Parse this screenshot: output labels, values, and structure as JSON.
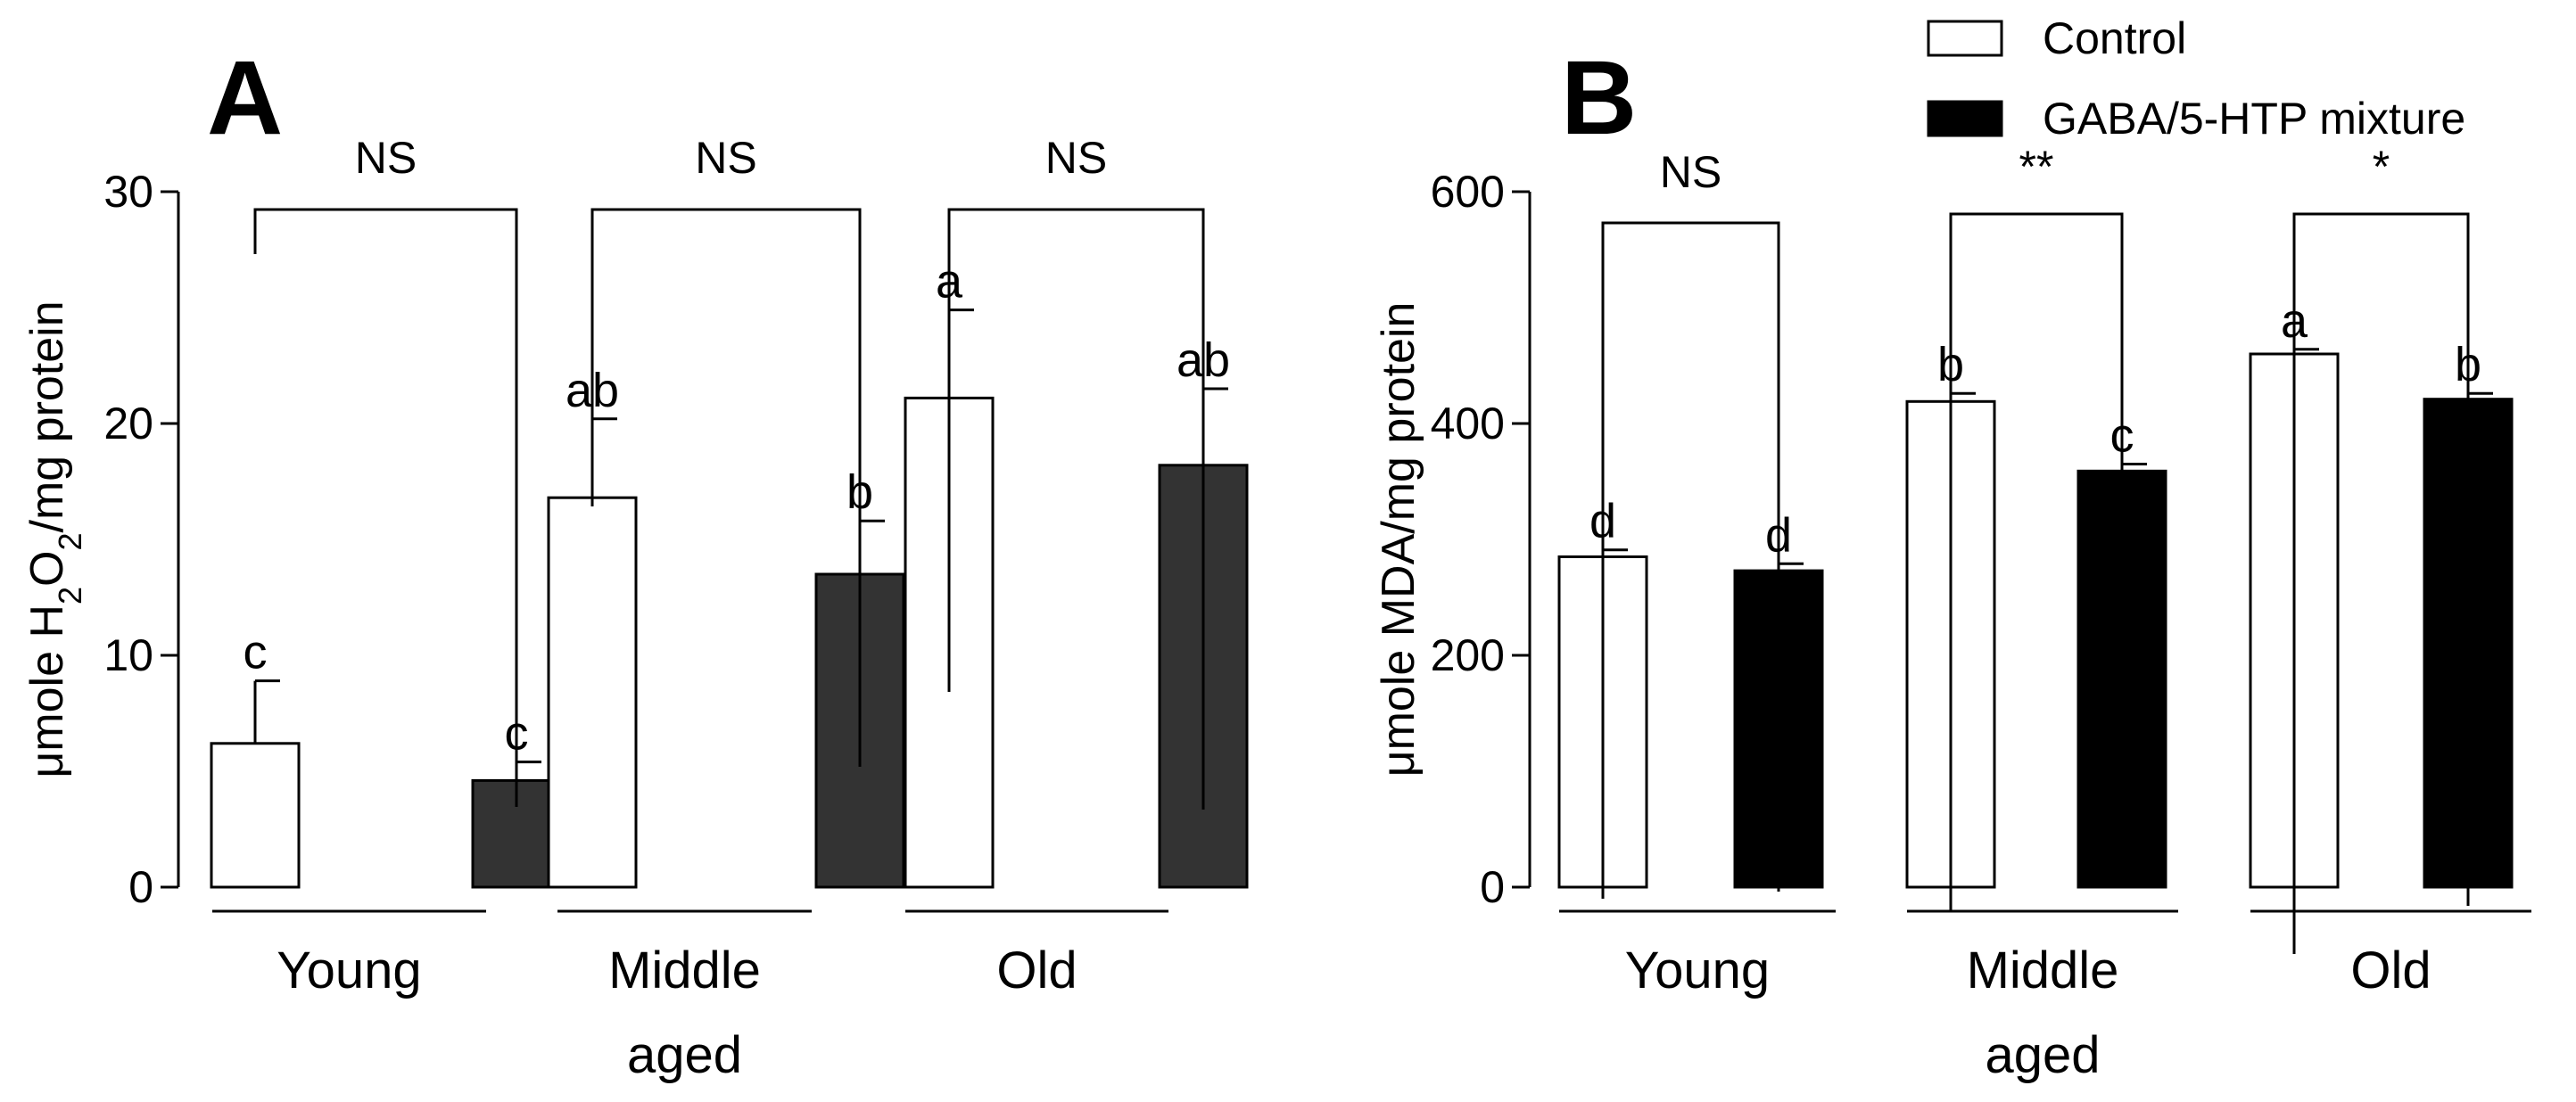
{
  "legend": {
    "items": [
      {
        "label": "Control",
        "fill": "#ffffff"
      },
      {
        "label": "GABA/5-HTP mixture",
        "fill": "#000000"
      }
    ]
  },
  "chart_data": [
    {
      "type": "bar",
      "panel": "A",
      "ylabel": "μmole H2O2/mg protein",
      "ylabel_parts": {
        "pre": "μmole H",
        "sub1": "2",
        "mid": "O",
        "sub2": "2",
        "post": "/mg protein"
      },
      "ylim": [
        0,
        30
      ],
      "yticks": [
        0,
        10,
        20,
        30
      ],
      "ytick_labels": [
        "0",
        "10",
        "20",
        "30"
      ],
      "categories": [
        "Young",
        "Middle",
        "Old"
      ],
      "category_sublabels": [
        "",
        "aged",
        ""
      ],
      "series": [
        {
          "name": "Control",
          "color": "#ffffff",
          "values": [
            6.2,
            16.8,
            21.1
          ],
          "errors": [
            2.7,
            3.4,
            3.8
          ],
          "letters": [
            "c",
            "ab",
            "a"
          ]
        },
        {
          "name": "GABA/5-HTP mixture",
          "color": "#333333",
          "values": [
            4.6,
            13.5,
            18.2
          ],
          "errors": [
            0.8,
            2.3,
            3.3
          ],
          "letters": [
            "c",
            "b",
            "ab"
          ]
        }
      ],
      "significance": [
        "NS",
        "NS",
        "NS"
      ]
    },
    {
      "type": "bar",
      "panel": "B",
      "ylabel": "μmole MDA/mg protein",
      "ylim": [
        0,
        600
      ],
      "yticks": [
        0,
        200,
        400,
        600
      ],
      "ytick_labels": [
        "0",
        "200",
        "400",
        "600"
      ],
      "categories": [
        "Young",
        "Middle",
        "Old"
      ],
      "category_sublabels": [
        "",
        "aged",
        ""
      ],
      "series": [
        {
          "name": "Control",
          "color": "#ffffff",
          "values": [
            285,
            419,
            460
          ],
          "errors": [
            6,
            7,
            4
          ],
          "letters": [
            "d",
            "b",
            "a"
          ]
        },
        {
          "name": "GABA/5-HTP mixture",
          "color": "#000000",
          "values": [
            273,
            359,
            421
          ],
          "errors": [
            6,
            6,
            5
          ],
          "letters": [
            "d",
            "c",
            "b"
          ]
        }
      ],
      "significance": [
        "NS",
        "**",
        "*"
      ]
    }
  ]
}
